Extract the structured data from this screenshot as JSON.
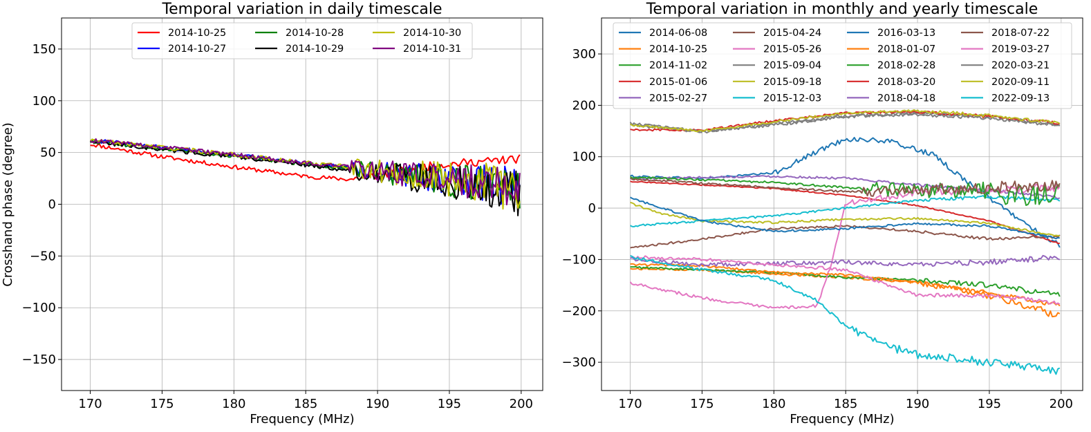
{
  "chart_data": [
    {
      "type": "line",
      "title": "Temporal variation in daily timescale",
      "xlabel": "Frequency (MHz)",
      "ylabel": "Crosshand phase (degree)",
      "xlim": [
        168,
        201.5
      ],
      "ylim": [
        -180,
        180
      ],
      "xticks": [
        170,
        175,
        180,
        185,
        190,
        195,
        200
      ],
      "yticks": [
        -150,
        -100,
        -50,
        0,
        50,
        100,
        150
      ],
      "grid": true,
      "legend": "top-center",
      "legend_columns": 3,
      "series": [
        {
          "name": "2014-10-25",
          "color": "#ff0000",
          "x": [
            170,
            175,
            180,
            185,
            188,
            190,
            193,
            196,
            200
          ],
          "y": [
            58,
            46,
            36,
            27,
            24,
            28,
            36,
            40,
            44
          ],
          "noise_lo": [
            170,
            2,
            2
          ],
          "noise_hi": [
            188,
            4,
            4
          ]
        },
        {
          "name": "2014-10-27",
          "color": "#0000ff",
          "x": [
            170,
            175,
            180,
            185,
            188,
            190,
            193,
            196,
            200
          ],
          "y": [
            62,
            55,
            48,
            40,
            35,
            31,
            26,
            22,
            14
          ],
          "noise_lo": [
            170,
            2,
            2
          ],
          "noise_hi": [
            188,
            8,
            22
          ]
        },
        {
          "name": "2014-10-28",
          "color": "#008000",
          "x": [
            170,
            175,
            180,
            185,
            188,
            190,
            193,
            196,
            200
          ],
          "y": [
            61,
            54,
            47,
            39,
            35,
            31,
            27,
            22,
            12
          ],
          "noise_lo": [
            170,
            2,
            2
          ],
          "noise_hi": [
            188,
            8,
            22
          ]
        },
        {
          "name": "2014-10-29",
          "color": "#000000",
          "x": [
            170,
            175,
            180,
            185,
            188,
            190,
            193,
            196,
            200
          ],
          "y": [
            61,
            53,
            46,
            38,
            33,
            29,
            25,
            20,
            10
          ],
          "noise_lo": [
            170,
            2,
            2
          ],
          "noise_hi": [
            188,
            8,
            22
          ]
        },
        {
          "name": "2014-10-30",
          "color": "#bfbf00",
          "x": [
            170,
            175,
            180,
            185,
            188,
            190,
            193,
            196,
            200
          ],
          "y": [
            62,
            55,
            48,
            40,
            36,
            32,
            28,
            24,
            14
          ],
          "noise_lo": [
            170,
            2,
            2
          ],
          "noise_hi": [
            188,
            8,
            24
          ]
        },
        {
          "name": "2014-10-31",
          "color": "#800080",
          "x": [
            170,
            175,
            180,
            185,
            188,
            190,
            193,
            196,
            200
          ],
          "y": [
            62,
            55,
            48,
            40,
            36,
            32,
            28,
            24,
            16
          ],
          "noise_lo": [
            170,
            2,
            2
          ],
          "noise_hi": [
            188,
            8,
            22
          ]
        }
      ]
    },
    {
      "type": "line",
      "title": "Temporal variation in monthly and yearly timescale",
      "xlabel": "Frequency (MHz)",
      "ylabel": "",
      "xlim": [
        168,
        201.5
      ],
      "ylim": [
        -355,
        370
      ],
      "xticks": [
        170,
        175,
        180,
        185,
        190,
        195,
        200
      ],
      "yticks": [
        -300,
        -200,
        -100,
        0,
        100,
        200,
        300
      ],
      "grid": true,
      "legend": "top-center",
      "legend_columns": 4,
      "series": [
        {
          "name": "2014-06-08",
          "color": "#1f77b4",
          "x": [
            170,
            175,
            180,
            183,
            185,
            188,
            191,
            194,
            197,
            200
          ],
          "y": [
            62,
            58,
            68,
            110,
            135,
            130,
            105,
            40,
            -20,
            -75
          ],
          "noise_lo": [
            170,
            2,
            2
          ],
          "noise_hi": [
            180,
            5,
            5
          ]
        },
        {
          "name": "2014-10-25",
          "color": "#ff7f0e",
          "x": [
            170,
            175,
            180,
            185,
            190,
            195,
            200
          ],
          "y": [
            -118,
            -120,
            -128,
            -135,
            -145,
            -170,
            -210
          ],
          "noise_lo": [
            170,
            2,
            2
          ],
          "noise_hi": [
            190,
            5,
            8
          ]
        },
        {
          "name": "2014-11-02",
          "color": "#2ca02c",
          "x": [
            170,
            175,
            180,
            185,
            190,
            195,
            200
          ],
          "y": [
            -115,
            -120,
            -125,
            -135,
            -140,
            -150,
            -170
          ],
          "noise_lo": [
            170,
            2,
            2
          ],
          "noise_hi": [
            190,
            4,
            6
          ]
        },
        {
          "name": "2015-01-06",
          "color": "#d62728",
          "x": [
            170,
            175,
            180,
            185,
            190,
            195,
            200
          ],
          "y": [
            52,
            45,
            38,
            25,
            5,
            -25,
            -70
          ],
          "noise_lo": [
            170,
            1,
            1
          ],
          "noise_hi": [
            190,
            1,
            1
          ]
        },
        {
          "name": "2015-02-27",
          "color": "#9467bd",
          "x": [
            170,
            175,
            180,
            185,
            190,
            195,
            200
          ],
          "y": [
            57,
            60,
            62,
            58,
            45,
            35,
            20
          ],
          "noise_lo": [
            170,
            2,
            2
          ],
          "noise_hi": [
            190,
            3,
            3
          ]
        },
        {
          "name": "2015-04-24",
          "color": "#8c564b",
          "x": [
            170,
            175,
            180,
            185,
            190,
            195,
            200
          ],
          "y": [
            -78,
            -60,
            -40,
            -35,
            -45,
            -60,
            -55
          ],
          "noise_lo": [
            170,
            2,
            2
          ],
          "noise_hi": [
            190,
            3,
            3
          ]
        },
        {
          "name": "2015-05-26",
          "color": "#e377c2",
          "x": [
            170,
            175,
            180,
            183,
            184,
            185,
            190,
            195,
            200
          ],
          "y": [
            -145,
            -175,
            -195,
            -190,
            -110,
            10,
            30,
            35,
            40
          ],
          "noise_lo": [
            170,
            3,
            3
          ],
          "noise_hi": [
            185,
            5,
            8
          ]
        },
        {
          "name": "2015-09-04",
          "color": "#7f7f7f",
          "x": [
            170,
            175,
            180,
            185,
            190,
            195,
            200
          ],
          "y": [
            162,
            150,
            162,
            178,
            185,
            178,
            162
          ],
          "noise_lo": [
            170,
            3,
            3
          ],
          "noise_hi": [
            190,
            3,
            3
          ]
        },
        {
          "name": "2015-09-18",
          "color": "#bcbd22",
          "x": [
            170,
            172,
            175,
            180,
            185,
            190,
            195,
            200
          ],
          "y": [
            10,
            -10,
            -25,
            -28,
            -22,
            -20,
            -30,
            -55
          ],
          "noise_lo": [
            170,
            2,
            2
          ],
          "noise_hi": [
            190,
            2,
            2
          ]
        },
        {
          "name": "2015-12-03",
          "color": "#17becf",
          "x": [
            170,
            175,
            180,
            185,
            190,
            195,
            200
          ],
          "y": [
            -35,
            -25,
            -15,
            0,
            15,
            22,
            15
          ],
          "noise_lo": [
            170,
            2,
            2
          ],
          "noise_hi": [
            190,
            3,
            3
          ]
        },
        {
          "name": "2016-03-13",
          "color": "#1f77b4",
          "x": [
            170,
            175,
            180,
            185,
            190,
            195,
            200
          ],
          "y": [
            20,
            -25,
            -45,
            -40,
            -30,
            -35,
            -60
          ],
          "noise_lo": [
            170,
            2,
            2
          ],
          "noise_hi": [
            190,
            2,
            2
          ]
        },
        {
          "name": "2018-01-07",
          "color": "#ff7f0e",
          "x": [
            170,
            175,
            180,
            185,
            190,
            195,
            200
          ],
          "y": [
            -110,
            -112,
            -125,
            -130,
            -145,
            -165,
            -190
          ],
          "noise_lo": [
            170,
            2,
            2
          ],
          "noise_hi": [
            190,
            4,
            4
          ]
        },
        {
          "name": "2018-02-28",
          "color": "#2ca02c",
          "x": [
            170,
            175,
            180,
            185,
            190,
            195,
            200
          ],
          "y": [
            60,
            55,
            50,
            40,
            35,
            30,
            20
          ],
          "noise_lo": [
            170,
            2,
            2
          ],
          "noise_hi": [
            186,
            12,
            25
          ]
        },
        {
          "name": "2018-03-20",
          "color": "#d62728",
          "x": [
            170,
            175,
            180,
            185,
            190,
            195,
            200
          ],
          "y": [
            152,
            152,
            170,
            185,
            188,
            178,
            165
          ],
          "noise_lo": [
            170,
            2,
            2
          ],
          "noise_hi": [
            190,
            3,
            3
          ]
        },
        {
          "name": "2018-04-18",
          "color": "#9467bd",
          "x": [
            170,
            175,
            180,
            185,
            190,
            195,
            200
          ],
          "y": [
            -100,
            -110,
            -108,
            -105,
            -110,
            -105,
            -95
          ],
          "noise_lo": [
            170,
            4,
            4
          ],
          "noise_hi": [
            190,
            5,
            6
          ]
        },
        {
          "name": "2018-07-22",
          "color": "#8c564b",
          "x": [
            170,
            175,
            180,
            185,
            190,
            195,
            200
          ],
          "y": [
            57,
            48,
            40,
            32,
            35,
            40,
            45
          ],
          "noise_lo": [
            170,
            2,
            2
          ],
          "noise_hi": [
            186,
            10,
            12
          ]
        },
        {
          "name": "2019-03-27",
          "color": "#e377c2",
          "x": [
            170,
            175,
            180,
            185,
            190,
            195,
            200
          ],
          "y": [
            -95,
            -100,
            -110,
            -120,
            -170,
            -170,
            -185
          ],
          "noise_lo": [
            170,
            3,
            3
          ],
          "noise_hi": [
            190,
            4,
            4
          ]
        },
        {
          "name": "2020-03-21",
          "color": "#7f7f7f",
          "x": [
            170,
            175,
            180,
            185,
            190,
            195,
            200
          ],
          "y": [
            165,
            148,
            165,
            180,
            182,
            175,
            160
          ],
          "noise_lo": [
            170,
            3,
            3
          ],
          "noise_hi": [
            190,
            3,
            3
          ]
        },
        {
          "name": "2020-09-11",
          "color": "#bcbd22",
          "x": [
            170,
            175,
            180,
            185,
            190,
            195,
            200
          ],
          "y": [
            162,
            150,
            168,
            185,
            190,
            180,
            165
          ],
          "noise_lo": [
            170,
            2,
            2
          ],
          "noise_hi": [
            190,
            3,
            3
          ]
        },
        {
          "name": "2022-09-13",
          "color": "#17becf",
          "x": [
            170,
            175,
            180,
            183,
            185,
            188,
            190,
            195,
            200
          ],
          "y": [
            -95,
            -120,
            -140,
            -180,
            -230,
            -270,
            -285,
            -300,
            -318
          ],
          "noise_lo": [
            170,
            3,
            3
          ],
          "noise_hi": [
            185,
            8,
            8
          ]
        }
      ]
    }
  ]
}
